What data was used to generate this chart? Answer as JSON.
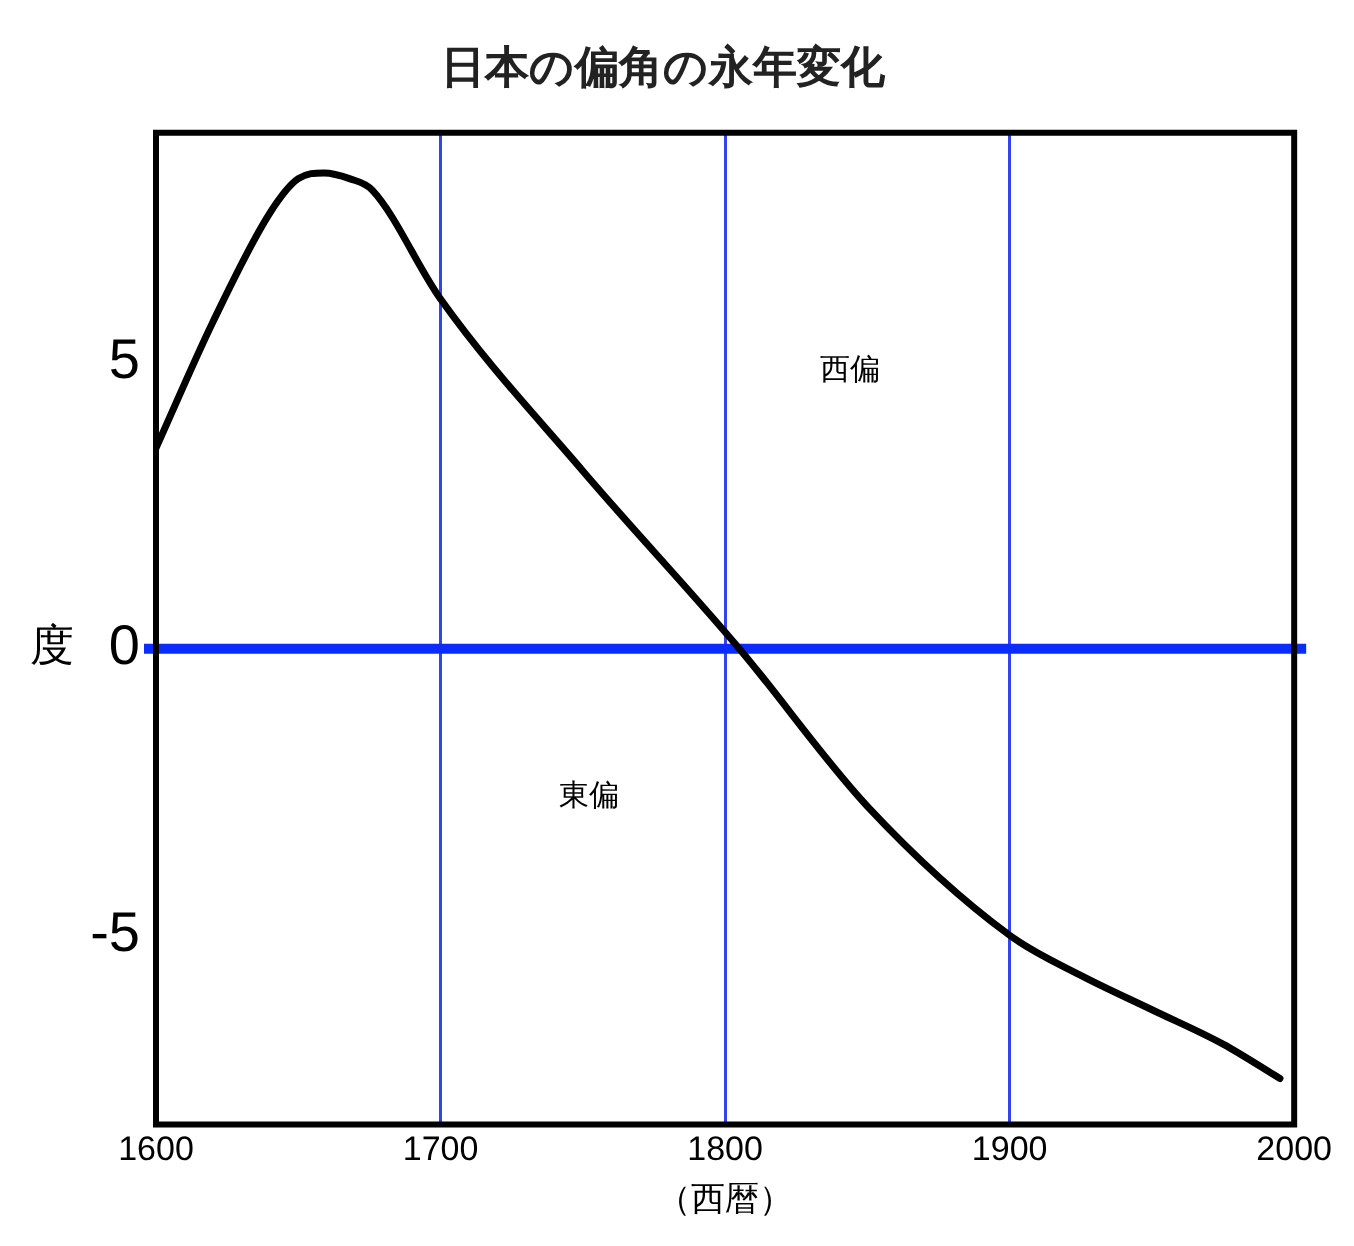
{
  "chart_data": {
    "type": "line",
    "title": "日本の偏角の永年変化",
    "xlabel": "（西暦）",
    "ylabel": "度",
    "series": [
      {
        "color": "#000000",
        "x": [
          1600,
          1620,
          1640,
          1650,
          1659,
          1668,
          1676,
          1700,
          1750,
          1805,
          1850,
          1900,
          1925,
          1950,
          1975,
          1995
        ],
        "values": [
          3.5,
          5.7,
          7.6,
          8.2,
          8.3,
          8.2,
          8.0,
          6.1,
          3.1,
          0,
          -2.75,
          -5.0,
          -5.7,
          -6.3,
          -6.9,
          -7.5
        ]
      }
    ],
    "xlim": [
      1600,
      2000
    ],
    "xticks": [
      1600,
      1700,
      1800,
      1900,
      2000
    ],
    "ylim": [
      -8.3,
      9
    ],
    "yticks": [
      -5,
      0,
      5
    ],
    "grid": "x",
    "legend": false,
    "marker": "none",
    "line_style": "solid",
    "ref_lines": [
      {
        "axis": "y",
        "value": 0,
        "color": "#0a2cff"
      }
    ],
    "annotations": [
      "西偏",
      "東偏"
    ]
  }
}
